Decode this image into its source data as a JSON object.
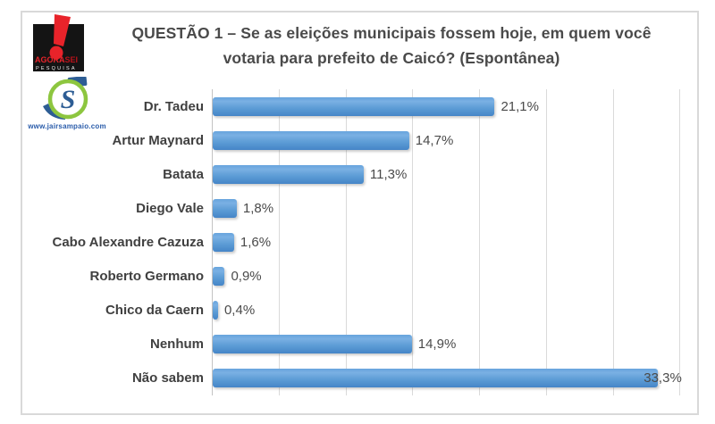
{
  "header": {
    "title_line1": "QUESTÃO 1 – Se as eleições municipais fossem hoje, em quem você",
    "title_line2": "votaria para prefeito de Caicó? (Espontânea)"
  },
  "logos": {
    "agorasei": {
      "name_part1": "AGORA",
      "name_part2": "SEI",
      "subtitle": "PESQUISA"
    },
    "jairsampaio": {
      "letter": "S",
      "url": "www.jairsampaio.com"
    }
  },
  "colors": {
    "bar": "#5b9bd5",
    "gridline": "#dadada",
    "frame_border": "#d9d9d9",
    "title_text": "#4a4a4a",
    "label_text": "#404040",
    "agorasei_red": "#e8232a",
    "jair_green": "#8dc63f",
    "jair_blue": "#2d5d94"
  },
  "chart_data": {
    "type": "bar",
    "orientation": "horizontal",
    "title": "QUESTÃO 1 – Se as eleições municipais fossem hoje, em quem você votaria para prefeito de Caicó? (Espontânea)",
    "categories": [
      "Dr. Tadeu",
      "Artur Maynard",
      "Batata",
      "Diego Vale",
      "Cabo Alexandre Cazuza",
      "Roberto Germano",
      "Chico da Caern",
      "Nenhum",
      "Não sabem"
    ],
    "values": [
      21.1,
      14.7,
      11.3,
      1.8,
      1.6,
      0.9,
      0.4,
      14.9,
      33.3
    ],
    "value_labels": [
      "21,1%",
      "14,7%",
      "11,3%",
      "1,8%",
      "1,6%",
      "0,9%",
      "0,4%",
      "14,9%",
      "33,3%"
    ],
    "xlabel": "",
    "ylabel": "",
    "xlim": [
      0,
      35
    ],
    "gridline_step": 5,
    "grid": true,
    "legend": false
  }
}
